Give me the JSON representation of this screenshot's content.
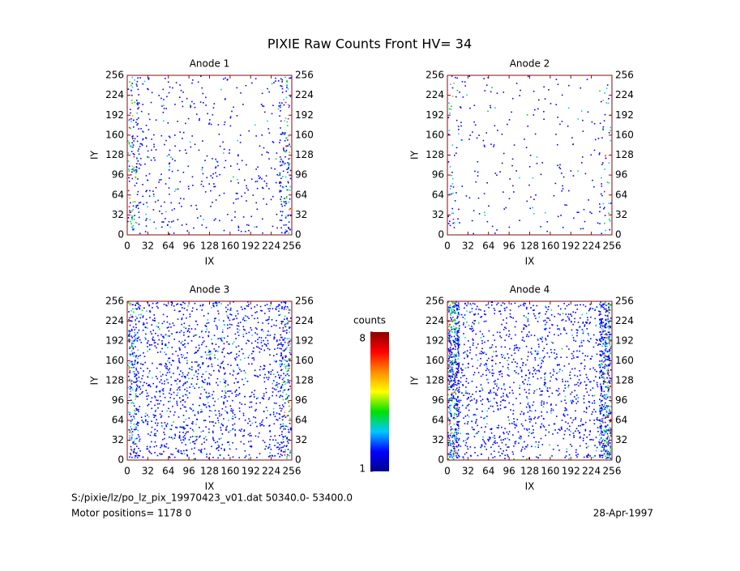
{
  "title": "PIXIE Raw Counts Front HV= 34",
  "chart_data": [
    {
      "type": "heatmap",
      "title": "Anode 1",
      "xlabel": "IX",
      "ylabel": "IY",
      "xlim": [
        0,
        256
      ],
      "ylim": [
        0,
        256
      ],
      "xticks": [
        0,
        32,
        64,
        96,
        128,
        160,
        192,
        224,
        256
      ],
      "yticks": [
        0,
        32,
        64,
        96,
        128,
        160,
        192,
        224,
        256
      ],
      "y2ticks": [
        0,
        32,
        64,
        96,
        128,
        160,
        192,
        224,
        256
      ]
    },
    {
      "type": "heatmap",
      "title": "Anode 2",
      "xlabel": "IX",
      "ylabel": "IY",
      "xlim": [
        0,
        256
      ],
      "ylim": [
        0,
        256
      ],
      "xticks": [
        0,
        32,
        64,
        96,
        128,
        160,
        192,
        224,
        256
      ],
      "yticks": [
        0,
        32,
        64,
        96,
        128,
        160,
        192,
        224,
        256
      ],
      "y2ticks": [
        0,
        32,
        64,
        96,
        128,
        160,
        192,
        224,
        256
      ]
    },
    {
      "type": "heatmap",
      "title": "Anode 3",
      "xlabel": "IX",
      "ylabel": "IY",
      "xlim": [
        0,
        256
      ],
      "ylim": [
        0,
        256
      ],
      "xticks": [
        0,
        32,
        64,
        96,
        128,
        160,
        192,
        224,
        256
      ],
      "yticks": [
        0,
        32,
        64,
        96,
        128,
        160,
        192,
        224,
        256
      ],
      "y2ticks": [
        0,
        32,
        64,
        96,
        128,
        160,
        192,
        224,
        256
      ]
    },
    {
      "type": "heatmap",
      "title": "Anode 4",
      "xlabel": "IX",
      "ylabel": "IY",
      "xlim": [
        0,
        256
      ],
      "ylim": [
        0,
        256
      ],
      "xticks": [
        0,
        32,
        64,
        96,
        128,
        160,
        192,
        224,
        256
      ],
      "yticks": [
        0,
        32,
        64,
        96,
        128,
        160,
        192,
        224,
        256
      ],
      "y2ticks": [
        0,
        32,
        64,
        96,
        128,
        160,
        192,
        224,
        256
      ]
    }
  ],
  "colorbar": {
    "label": "counts",
    "lim": [
      1,
      8
    ],
    "ticks": [
      1,
      8
    ],
    "colors": [
      "#00008c",
      "#0000ff",
      "#00c8ff",
      "#00e000",
      "#ffff00",
      "#ff8c00",
      "#ff0000",
      "#8c0000"
    ]
  },
  "footer": {
    "file": "S:/pixie/lz/po_lz_pix_19970423_v01.dat   50340.0- 53400.0",
    "motor": "Motor positions= 1178 0",
    "date": "28-Apr-1997"
  }
}
